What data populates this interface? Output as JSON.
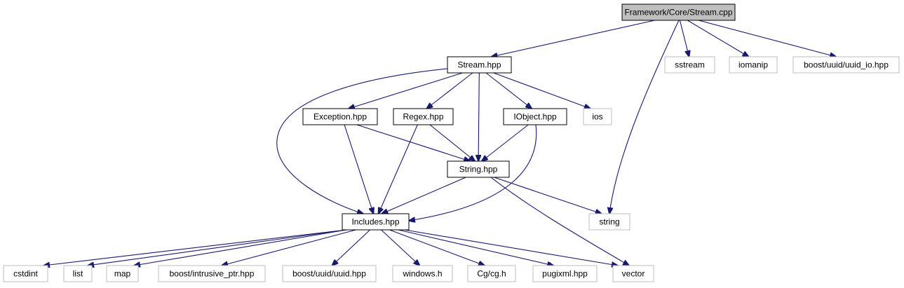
{
  "diagram": {
    "type": "include-dependency-graph",
    "colors": {
      "edge": "#191970",
      "root_fill": "#bfbfbf",
      "internal_border": "#000000",
      "external_border": "#bfbfbf",
      "text": "#000000"
    },
    "nodes": {
      "root": {
        "label": "Framework/Core/Stream.cpp",
        "kind": "root"
      },
      "stream_hpp": {
        "label": "Stream.hpp",
        "kind": "internal"
      },
      "sstream": {
        "label": "sstream",
        "kind": "external"
      },
      "iomanip": {
        "label": "iomanip",
        "kind": "external"
      },
      "uuid_io": {
        "label": "boost/uuid/uuid_io.hpp",
        "kind": "external"
      },
      "exception_hpp": {
        "label": "Exception.hpp",
        "kind": "internal"
      },
      "regex_hpp": {
        "label": "Regex.hpp",
        "kind": "internal"
      },
      "iobject_hpp": {
        "label": "IObject.hpp",
        "kind": "internal"
      },
      "ios": {
        "label": "ios",
        "kind": "external"
      },
      "string_hpp": {
        "label": "String.hpp",
        "kind": "internal"
      },
      "includes_hpp": {
        "label": "Includes.hpp",
        "kind": "internal"
      },
      "string": {
        "label": "string",
        "kind": "external"
      },
      "cstdint": {
        "label": "cstdint",
        "kind": "external"
      },
      "list": {
        "label": "list",
        "kind": "external"
      },
      "map": {
        "label": "map",
        "kind": "external"
      },
      "intrusive_ptr": {
        "label": "boost/intrusive_ptr.hpp",
        "kind": "external"
      },
      "uuid_hpp": {
        "label": "boost/uuid/uuid.hpp",
        "kind": "external"
      },
      "windows_h": {
        "label": "windows.h",
        "kind": "external"
      },
      "cg_h": {
        "label": "Cg/cg.h",
        "kind": "external"
      },
      "pugixml": {
        "label": "pugixml.hpp",
        "kind": "external"
      },
      "vector": {
        "label": "vector",
        "kind": "external"
      }
    },
    "edges": [
      [
        "root",
        "stream_hpp"
      ],
      [
        "root",
        "sstream"
      ],
      [
        "root",
        "iomanip"
      ],
      [
        "root",
        "uuid_io"
      ],
      [
        "root",
        "string"
      ],
      [
        "stream_hpp",
        "exception_hpp"
      ],
      [
        "stream_hpp",
        "regex_hpp"
      ],
      [
        "stream_hpp",
        "iobject_hpp"
      ],
      [
        "stream_hpp",
        "ios"
      ],
      [
        "stream_hpp",
        "string_hpp"
      ],
      [
        "stream_hpp",
        "includes_hpp"
      ],
      [
        "exception_hpp",
        "string_hpp"
      ],
      [
        "exception_hpp",
        "includes_hpp"
      ],
      [
        "regex_hpp",
        "string_hpp"
      ],
      [
        "regex_hpp",
        "includes_hpp"
      ],
      [
        "iobject_hpp",
        "string_hpp"
      ],
      [
        "iobject_hpp",
        "includes_hpp"
      ],
      [
        "string_hpp",
        "includes_hpp"
      ],
      [
        "string_hpp",
        "string"
      ],
      [
        "string_hpp",
        "vector"
      ],
      [
        "includes_hpp",
        "cstdint"
      ],
      [
        "includes_hpp",
        "list"
      ],
      [
        "includes_hpp",
        "map"
      ],
      [
        "includes_hpp",
        "intrusive_ptr"
      ],
      [
        "includes_hpp",
        "uuid_hpp"
      ],
      [
        "includes_hpp",
        "windows_h"
      ],
      [
        "includes_hpp",
        "cg_h"
      ],
      [
        "includes_hpp",
        "pugixml"
      ],
      [
        "includes_hpp",
        "vector"
      ]
    ]
  }
}
